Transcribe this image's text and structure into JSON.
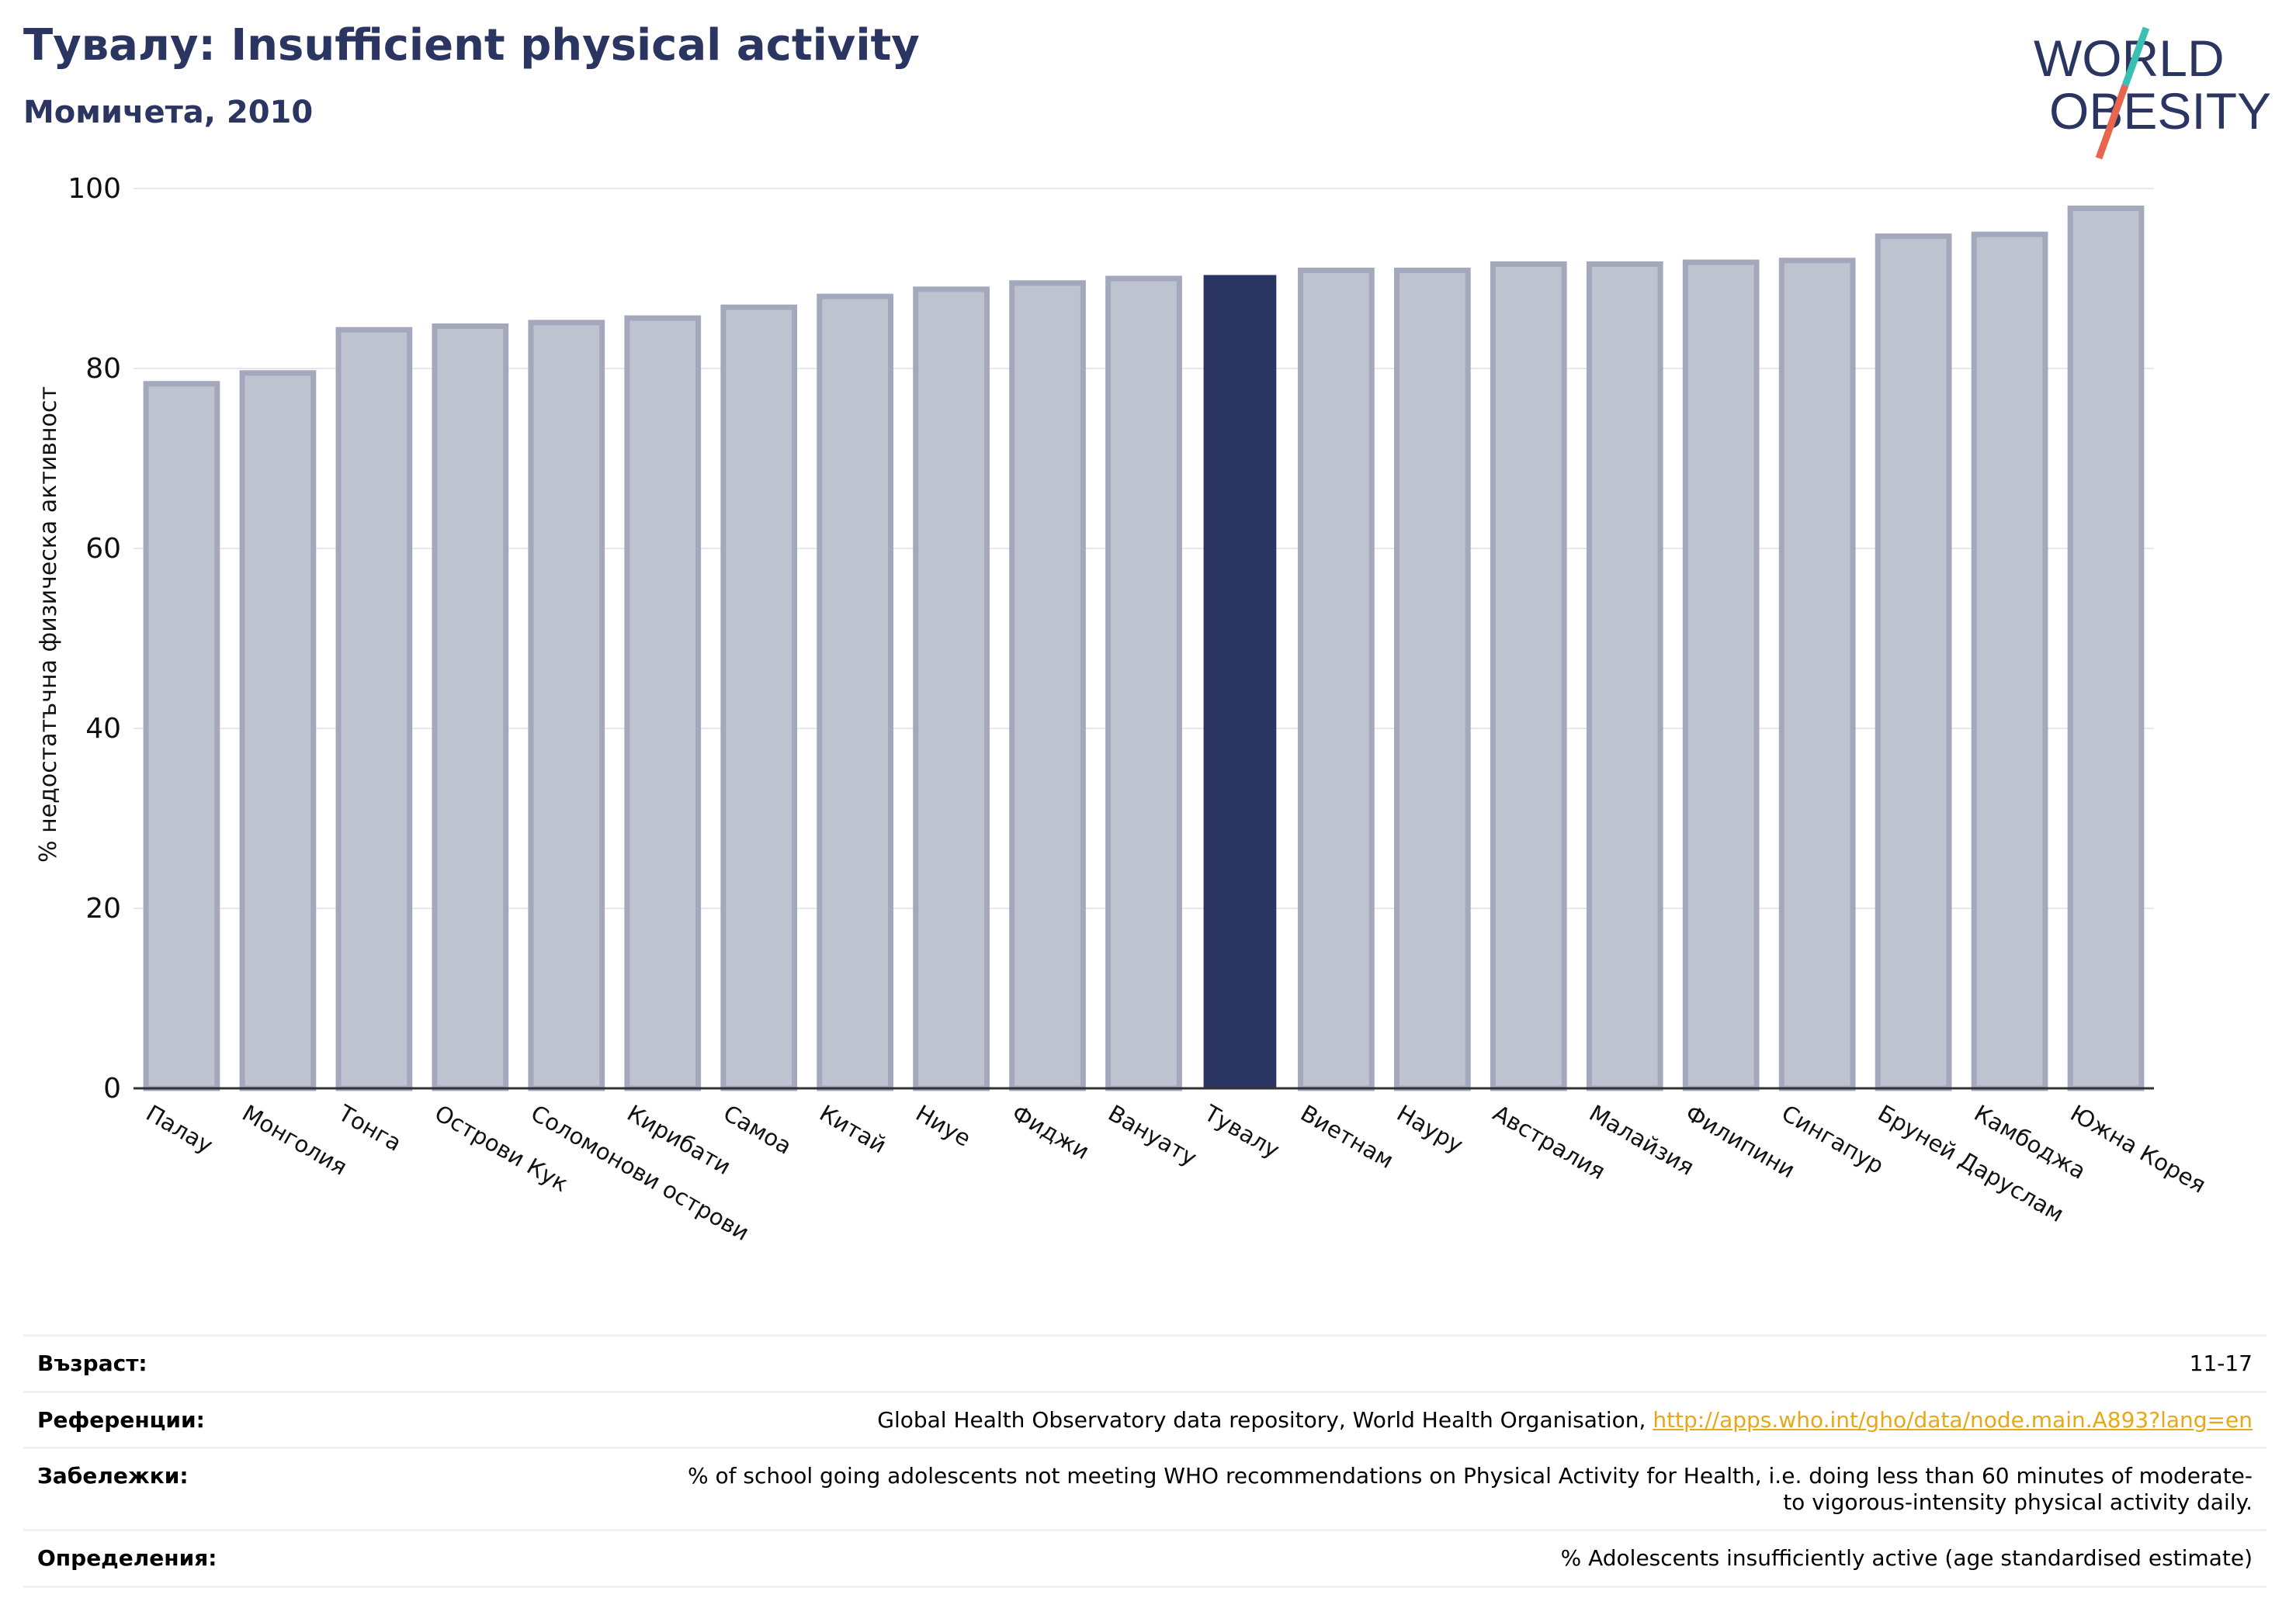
{
  "header": {
    "title": "Тувалу: Insufficient physical activity",
    "subtitle": "Момичета, 2010"
  },
  "logo": {
    "line1": "WORLD",
    "line2": "OBESITY",
    "colors": {
      "text": "#2b3561",
      "slash_top": "#3bbfb3",
      "slash_bottom": "#e8654f"
    }
  },
  "colors": {
    "bar": "#bfc2cf",
    "bar_border": "#a3a8bd",
    "highlight": "#2b3561",
    "grid": "#e6e8ee",
    "axis": "#333333"
  },
  "chart_data": {
    "type": "bar",
    "title": "Тувалу: Insufficient physical activity",
    "subtitle": "Момичета, 2010",
    "ylabel": "% недостатъчна физическа активност",
    "xlabel": "",
    "ylim": [
      0,
      100
    ],
    "yticks": [
      0,
      20,
      40,
      60,
      80,
      100
    ],
    "grid": true,
    "highlight": "Тувалу",
    "categories": [
      "Палау",
      "Монголия",
      "Тонга",
      "Острови Кук",
      "Соломонови острови",
      "Кирибати",
      "Самоа",
      "Китай",
      "Ниуе",
      "Фиджи",
      "Вануату",
      "Тувалу",
      "Виетнам",
      "Науру",
      "Австралия",
      "Малайзия",
      "Филипини",
      "Сингапур",
      "Бруней Даруслам",
      "Камбоджа",
      "Южна Корея"
    ],
    "values": [
      78.3,
      79.5,
      84.3,
      84.7,
      85.1,
      85.6,
      86.8,
      88.0,
      88.8,
      89.5,
      90.0,
      90.3,
      90.9,
      90.9,
      91.6,
      91.6,
      91.8,
      92.0,
      94.7,
      94.9,
      97.8
    ]
  },
  "meta": {
    "age_label": "Възраст:",
    "age_value": "11-17",
    "references_label": "Референции:",
    "references_value": "Global Health Observatory data repository, World Health Organisation, ",
    "references_link": "http://apps.who.int/gho/data/node.main.A893?lang=en",
    "notes_label": "Забележки:",
    "notes_value": "% of school going adolescents not meeting WHO recommendations on Physical Activity for Health, i.e. doing less than 60 minutes of moderate- to vigorous-intensity physical activity daily.",
    "definitions_label": "Определения:",
    "definitions_value": "% Adolescents insufficiently active (age standardised estimate)"
  }
}
